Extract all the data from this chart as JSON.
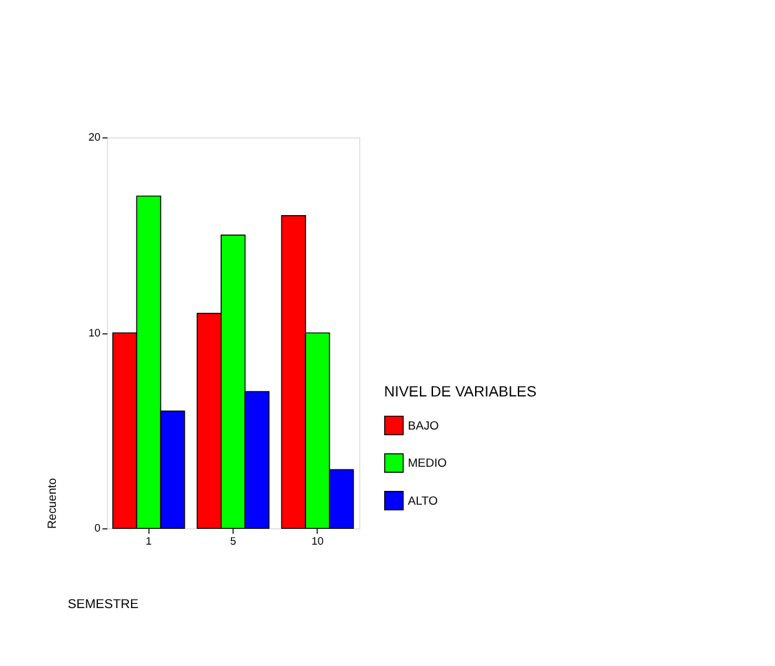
{
  "chart_data": {
    "type": "bar",
    "categories": [
      "1",
      "5",
      "10"
    ],
    "series": [
      {
        "name": "BAJO",
        "color": "#ff0000",
        "values": [
          10,
          11,
          16
        ]
      },
      {
        "name": "MEDIO",
        "color": "#00ff00",
        "values": [
          17,
          15,
          10
        ]
      },
      {
        "name": "ALTO",
        "color": "#0000ff",
        "values": [
          6,
          7,
          3
        ]
      }
    ],
    "xlabel": "SEMESTRE",
    "ylabel": "Recuento",
    "legend_title": "NIVEL DE VARIABLES",
    "ylim": [
      0,
      20
    ],
    "yticks": [
      0,
      10,
      20
    ],
    "grid": false,
    "legend": "right"
  }
}
